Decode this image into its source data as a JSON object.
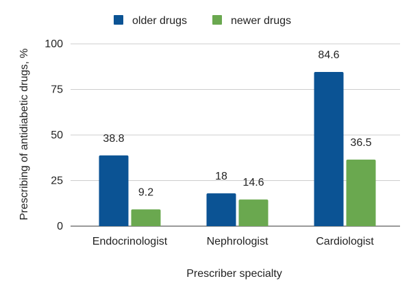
{
  "chart_data": {
    "type": "bar",
    "categories": [
      "Endocrinologist",
      "Nephrologist",
      "Cardiologist"
    ],
    "series": [
      {
        "name": "older drugs",
        "values": [
          38.8,
          18,
          84.6
        ],
        "color": "#0b5394"
      },
      {
        "name": "newer drugs",
        "values": [
          9.2,
          14.6,
          36.5
        ],
        "color": "#6aa84f"
      }
    ],
    "data_labels": [
      [
        "38.8",
        "18",
        "84.6"
      ],
      [
        "9.2",
        "14.6",
        "36.5"
      ]
    ],
    "xlabel": "Prescriber specialty",
    "ylabel": "Prescribing of antidiabetic drugs, %",
    "ylim": [
      0,
      100
    ],
    "yticks": [
      0,
      25,
      50,
      75,
      100
    ],
    "ytick_labels": [
      "0",
      "25",
      "50",
      "75",
      "100"
    ],
    "grid": true,
    "legend_position": "top"
  }
}
